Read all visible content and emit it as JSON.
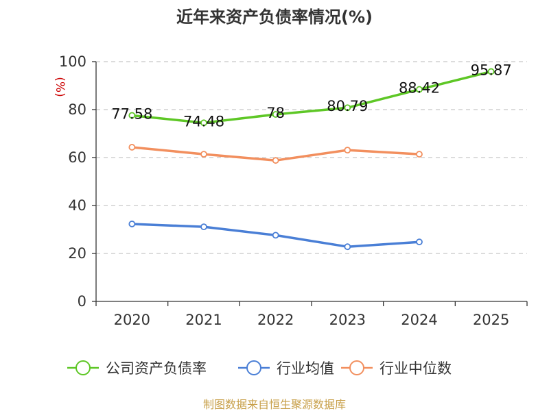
{
  "chart_data": {
    "type": "line",
    "title": "近年来资产负债率情况(%)",
    "ylabel": "(%)",
    "xlabel": "",
    "categories": [
      "2020",
      "2021",
      "2022",
      "2023",
      "2024",
      "2025"
    ],
    "ylim": [
      0,
      100
    ],
    "yticks": [
      "0",
      "20",
      "40",
      "60",
      "80",
      "100"
    ],
    "grid": true,
    "legend_position": "bottom",
    "series": [
      {
        "name": "公司资产负债率",
        "color": "#5ec726",
        "values": [
          77.58,
          74.48,
          78,
          80.79,
          88.42,
          95.87
        ],
        "labels": [
          "77.58",
          "74.48",
          "78",
          "80.79",
          "88.42",
          "95.87"
        ]
      },
      {
        "name": "行业均值",
        "color": "#4a7fd6",
        "values": [
          32.3,
          31.1,
          27.6,
          22.8,
          24.8,
          null
        ]
      },
      {
        "name": "行业中位数",
        "color": "#f28f5e",
        "values": [
          64.3,
          61.4,
          58.8,
          63.1,
          61.4,
          null
        ]
      }
    ]
  },
  "footer": {
    "source": "制图数据来自恒生聚源数据库"
  }
}
